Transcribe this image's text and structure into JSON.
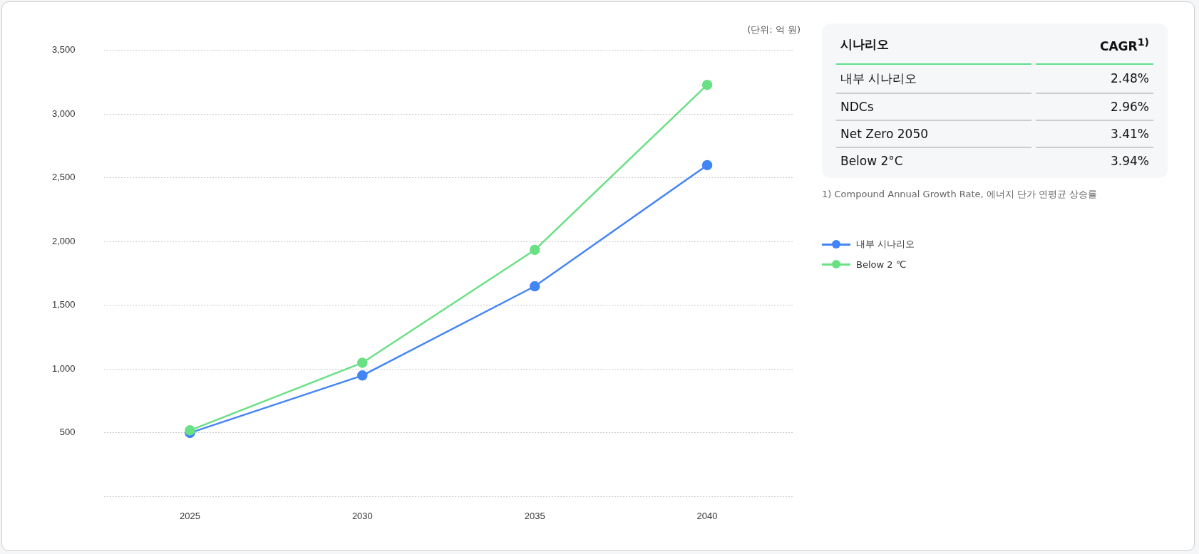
{
  "chart_data": [
    {
      "type": "line",
      "categories": [
        "2025",
        "2030",
        "2035",
        "2040"
      ],
      "series": [
        {
          "name": "내부 시나리오",
          "color": "#4285f4",
          "values": [
            500,
            950,
            1650,
            2600
          ]
        },
        {
          "name": "Below 2 ℃",
          "color": "#6ae085",
          "values": [
            520,
            1050,
            1935,
            3230
          ]
        }
      ],
      "ylim": [
        0,
        3500
      ],
      "yticks": [
        {
          "value": 0,
          "label": null
        },
        500,
        {
          "value": 1000,
          "label": "1,000"
        },
        {
          "value": 1500,
          "label": "1,500"
        },
        {
          "value": 2000,
          "label": "2,000"
        },
        {
          "value": 2500,
          "label": "2,500"
        },
        {
          "value": 3000,
          "label": "3,000"
        },
        {
          "value": 3500,
          "label": "3,500"
        }
      ],
      "grid": "y",
      "marker": "circle",
      "line_style": "solid",
      "legend": "right",
      "annotations": [
        "(단위: 억 원)"
      ]
    },
    {
      "type": "other",
      "xlabel": "시나리오",
      "ylabel": "CAGR$^{1)}$",
      "categories": [
        "내부 시나리오",
        "NDCs",
        "Net Zero 2050",
        "Below 2°C"
      ],
      "value_labels": [
        "2.48%",
        "2.96%",
        "3.41%",
        "3.94%"
      ],
      "annotations": [
        "1) Compound Annual Growth Rate, 에너지 단가 연평균 상승률"
      ]
    }
  ]
}
